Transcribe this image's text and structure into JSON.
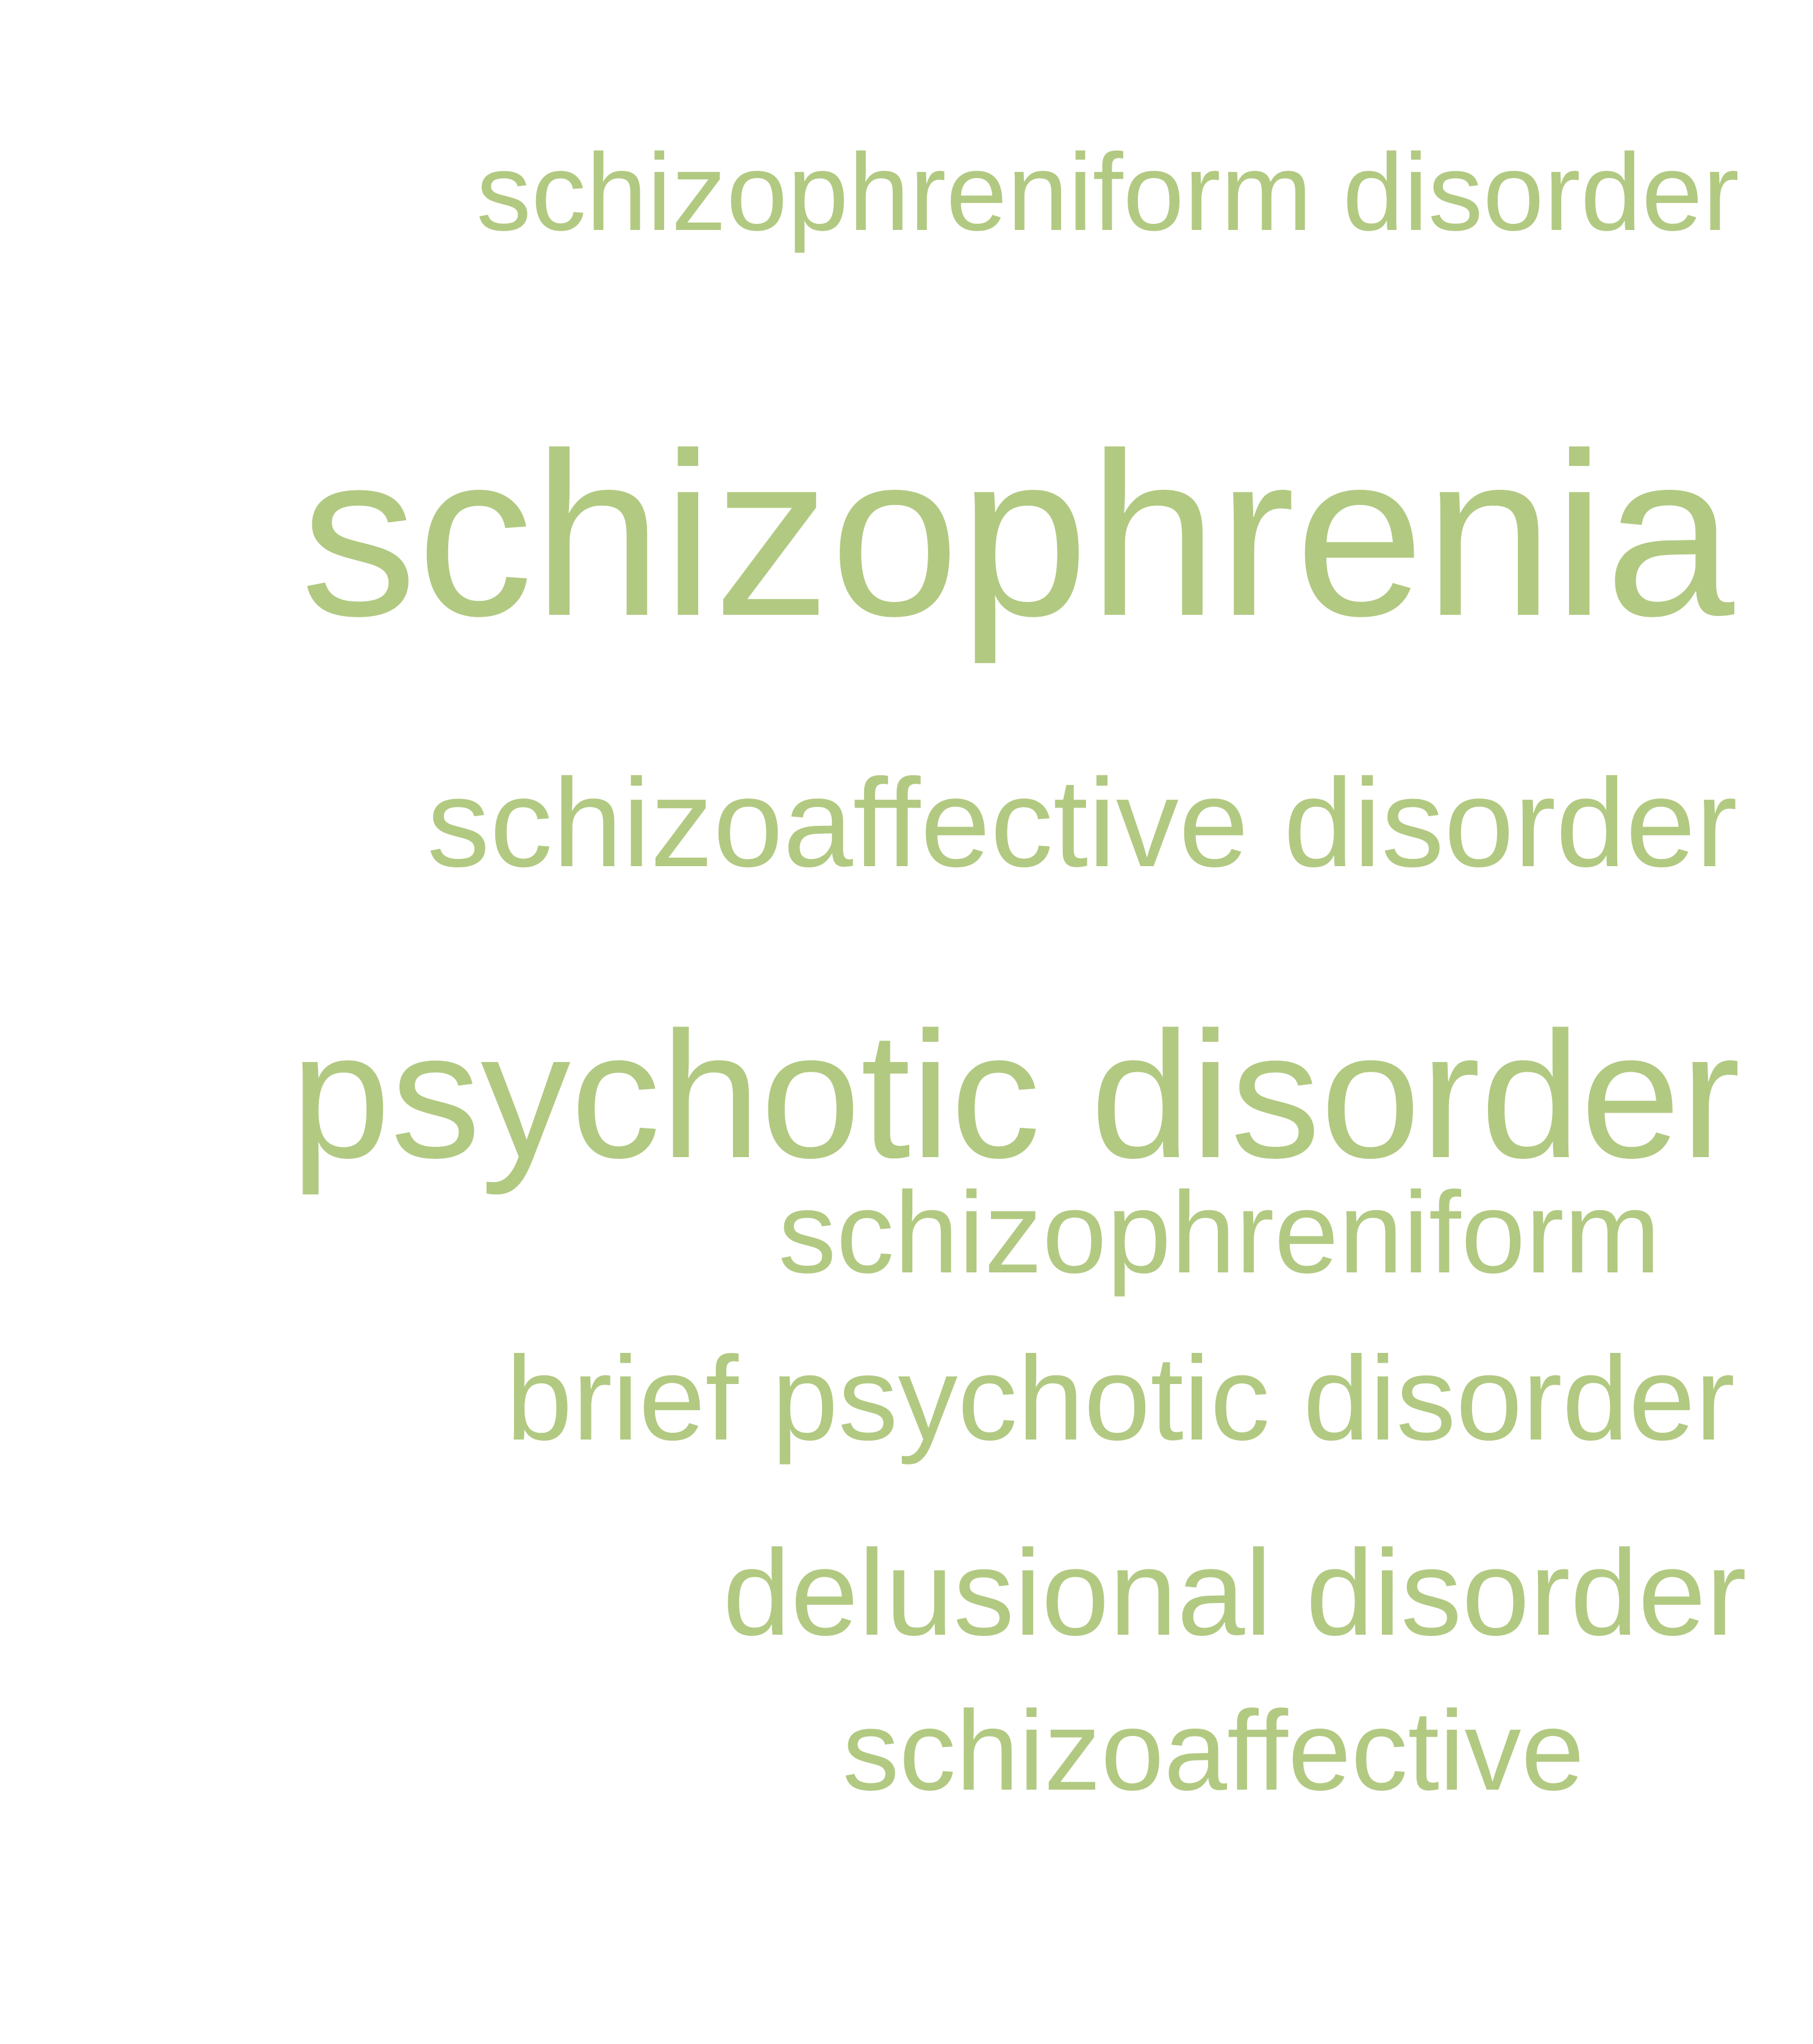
{
  "word_color": "#b2c982",
  "words": [
    {
      "text": "schizophreniform disorder"
    },
    {
      "text": "schizophrenia"
    },
    {
      "text": "schizoaffective disorder"
    },
    {
      "text": "psychotic disorder"
    },
    {
      "text": "schizophreniform"
    },
    {
      "text": "brief psychotic disorder"
    },
    {
      "text": "delusional disorder"
    },
    {
      "text": "schizoaffective"
    }
  ]
}
